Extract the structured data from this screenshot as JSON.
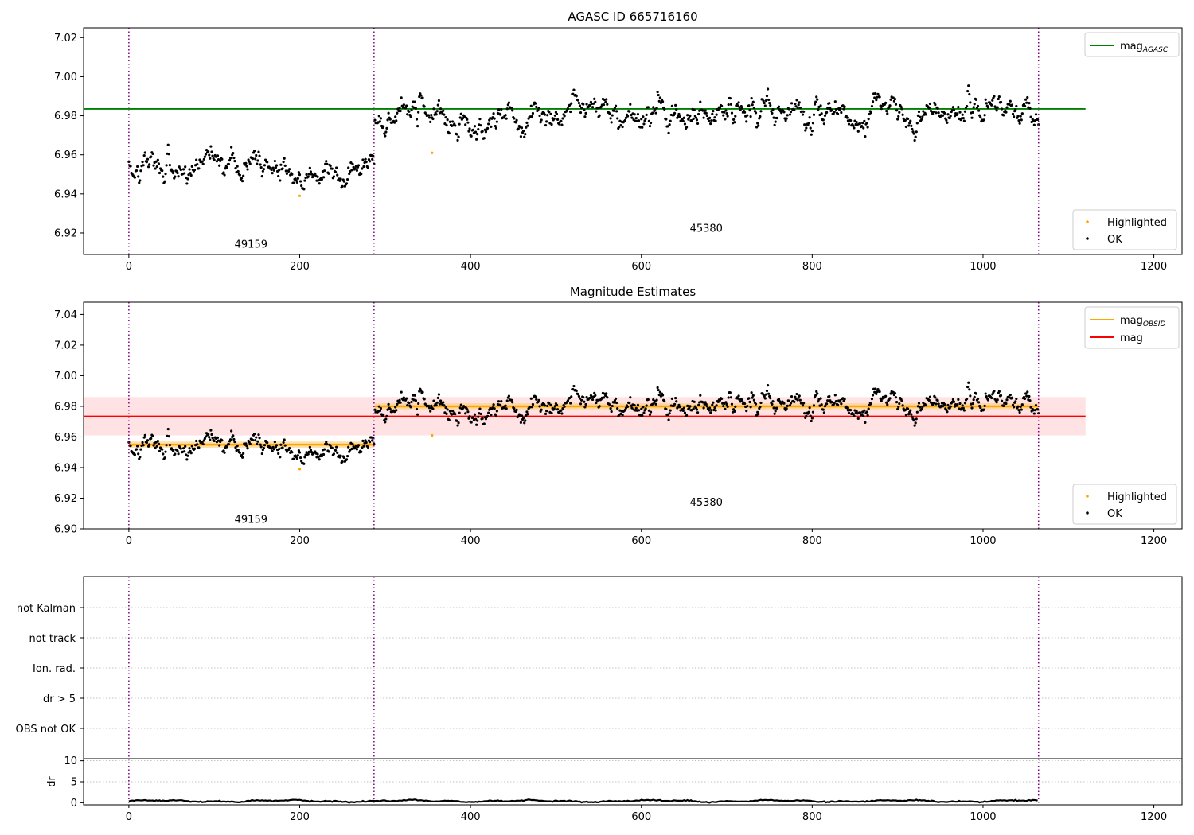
{
  "colors": {
    "ok": "#000000",
    "highlighted": "#ffa500",
    "mag_agasc": "#008000",
    "mag_obsid": "#ffa500",
    "mag": "#ff0000",
    "mag_band": "#ffdfe0",
    "mag_obsid_band": "#ffd38a",
    "obsid_boundary": "#800080",
    "grid": "#b0b0b0"
  },
  "chart_data": [
    {
      "type": "scatter",
      "title": "AGASC ID 665716160",
      "xlim": [
        -53,
        1233
      ],
      "ylim": [
        6.909,
        7.025
      ],
      "x_ticks": [
        "0",
        "200",
        "400",
        "600",
        "800",
        "1000",
        "1200"
      ],
      "y_ticks": [
        "6.92",
        "6.94",
        "6.96",
        "6.98",
        "7.00",
        "7.02"
      ],
      "obsid_boundaries": [
        0,
        287,
        1065
      ],
      "obsid_labels": [
        {
          "text": "49159",
          "x": 143,
          "y": 6.9125
        },
        {
          "text": "45380",
          "x": 676,
          "y": 6.9205
        }
      ],
      "segments": [
        {
          "x_start": 0,
          "x_end": 287,
          "mean": 6.9555,
          "std": 0.005
        },
        {
          "x_start": 288,
          "x_end": 1065,
          "mean": 6.9805,
          "std": 0.0055
        }
      ],
      "highlighted": [
        {
          "x": 200,
          "y": 6.939
        },
        {
          "x": 355,
          "y": 6.961
        }
      ],
      "series": [
        {
          "name": "mag",
          "name_sub": "AGASC",
          "kind": "hline",
          "y": 6.9835,
          "x_range": [
            -53,
            1120
          ]
        }
      ],
      "legend_lines": [
        {
          "label": "mag",
          "sub": "AGASC"
        }
      ],
      "legend_markers": [
        {
          "label": "Highlighted"
        },
        {
          "label": "OK"
        }
      ]
    },
    {
      "type": "scatter",
      "title": "Magnitude Estimates",
      "xlim": [
        -53,
        1233
      ],
      "ylim": [
        6.9,
        7.048
      ],
      "x_ticks": [
        "0",
        "200",
        "400",
        "600",
        "800",
        "1000",
        "1200"
      ],
      "y_ticks": [
        "6.90",
        "6.92",
        "6.94",
        "6.96",
        "6.98",
        "7.00",
        "7.02",
        "7.04"
      ],
      "obsid_boundaries": [
        0,
        287,
        1065
      ],
      "obsid_labels": [
        {
          "text": "49159",
          "x": 143,
          "y": 6.904
        },
        {
          "text": "45380",
          "x": 676,
          "y": 6.915
        }
      ],
      "segments": [
        {
          "x_start": 0,
          "x_end": 287,
          "mean": 6.9555,
          "std": 0.005
        },
        {
          "x_start": 288,
          "x_end": 1065,
          "mean": 6.9805,
          "std": 0.0055
        }
      ],
      "highlighted": [
        {
          "x": 200,
          "y": 6.939
        },
        {
          "x": 355,
          "y": 6.961
        }
      ],
      "series": [
        {
          "name": "mag",
          "name_sub": "OBSID",
          "kind": "steps",
          "steps": [
            {
              "x_start": 0,
              "x_end": 287,
              "y": 6.955,
              "band": [
                6.953,
                6.957
              ]
            },
            {
              "x_start": 288,
              "x_end": 1065,
              "y": 6.98,
              "band": [
                6.978,
                6.982
              ]
            }
          ]
        },
        {
          "name": "mag",
          "kind": "hline",
          "y": 6.9735,
          "band": [
            6.961,
            6.986
          ],
          "x_range": [
            -53,
            1120
          ]
        }
      ],
      "legend_lines": [
        {
          "label": "mag",
          "sub": "OBSID"
        },
        {
          "label": "mag",
          "sub": ""
        }
      ],
      "legend_markers": [
        {
          "label": "Highlighted"
        },
        {
          "label": "OK"
        }
      ]
    },
    {
      "type": "flags",
      "xlim": [
        -53,
        1233
      ],
      "categories": [
        "not Kalman",
        "not track",
        "Ion. rad.",
        "dr > 5",
        "OBS not OK"
      ],
      "obsid_boundaries": [
        0,
        287,
        1065
      ]
    },
    {
      "type": "line",
      "ylabel": "dr",
      "xlim": [
        -53,
        1233
      ],
      "ylim": [
        -0.5,
        10.5
      ],
      "x_ticks": [
        "0",
        "200",
        "400",
        "600",
        "800",
        "1000",
        "1200"
      ],
      "y_ticks": [
        "0",
        "5",
        "10"
      ],
      "x_range": [
        0,
        1065
      ],
      "mean": 0.4,
      "amplitude": 0.35,
      "obsid_boundaries": [
        0,
        287,
        1065
      ]
    }
  ]
}
